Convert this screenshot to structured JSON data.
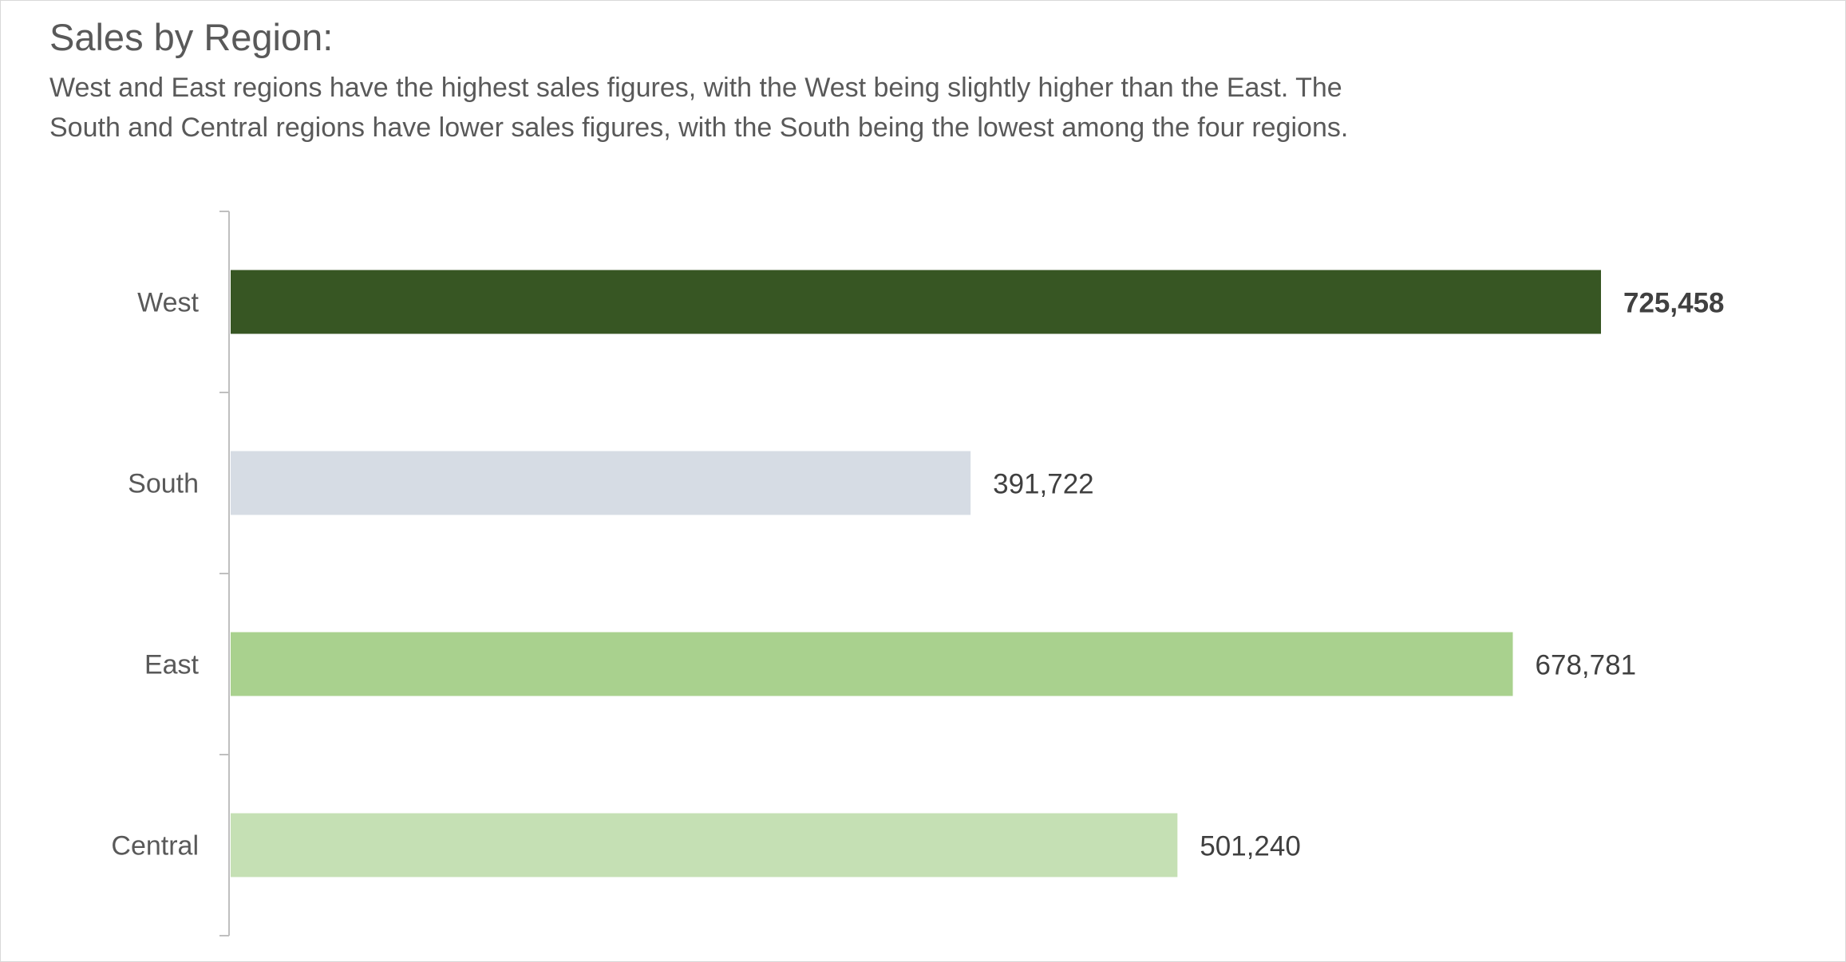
{
  "chart_data": {
    "type": "bar",
    "orientation": "horizontal",
    "title": "Sales by Region:",
    "subtitle_lines": [
      "West and East regions have the highest sales figures, with the West being slightly higher than the East. The",
      "South and Central regions have lower sales figures, with the South being the lowest among the four regions."
    ],
    "categories": [
      "West",
      "South",
      "East",
      "Central"
    ],
    "values": [
      725458,
      391722,
      678781,
      501240
    ],
    "value_labels": [
      "725,458",
      "391,722",
      "678,781",
      "501,240"
    ],
    "highlight_index": 0,
    "colors": [
      "#375623",
      "#d6dce4",
      "#a9d18e",
      "#c5e0b4"
    ],
    "xlabel": "",
    "ylabel": "",
    "xlim": [
      0,
      725458
    ],
    "grid": false,
    "legend": "none"
  },
  "colors": {
    "axis_line": "#bfbfbf",
    "frame_border": "#d9d9d9",
    "text": "#595959"
  }
}
